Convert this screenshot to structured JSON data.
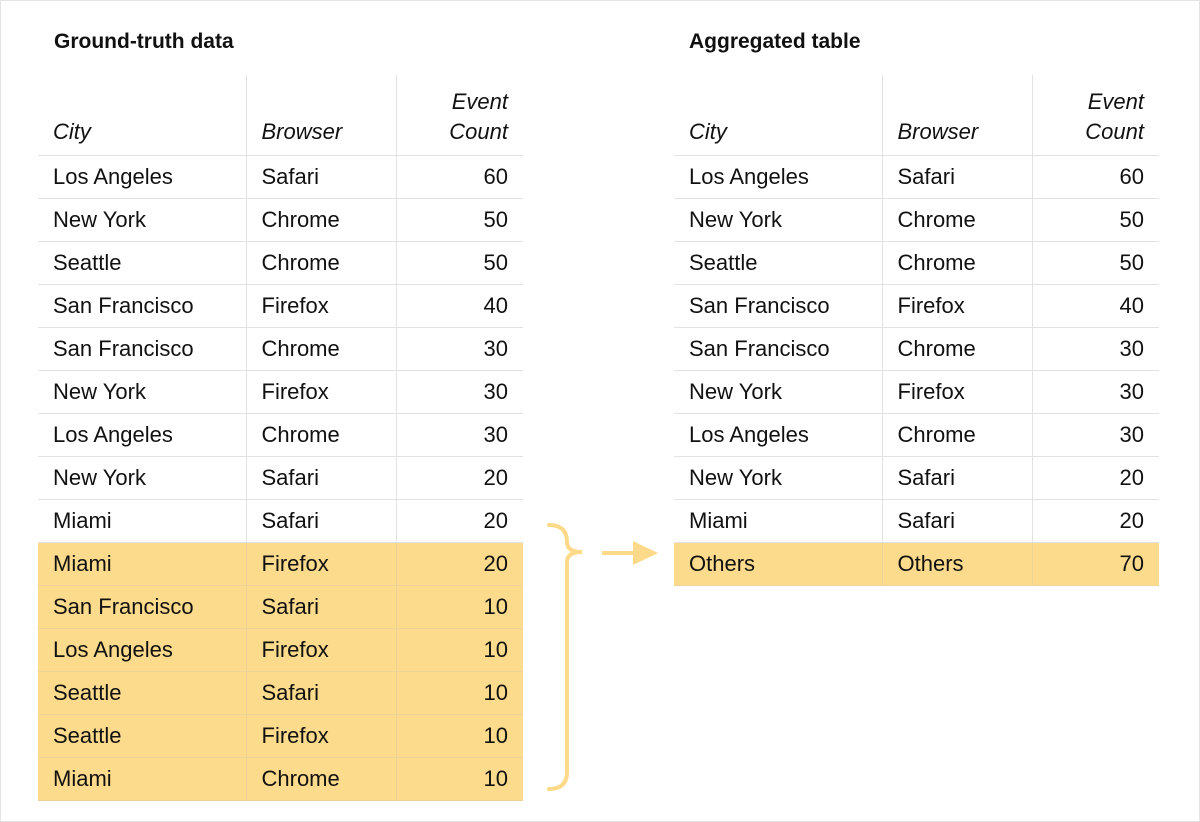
{
  "left": {
    "title": "Ground-truth data",
    "headers": {
      "city": "City",
      "browser": "Browser",
      "count_line1": "Event",
      "count_line2": "Count"
    },
    "rows": [
      {
        "city": "Los Angeles",
        "browser": "Safari",
        "count": "60",
        "highlighted": false
      },
      {
        "city": "New York",
        "browser": "Chrome",
        "count": "50",
        "highlighted": false
      },
      {
        "city": "Seattle",
        "browser": "Chrome",
        "count": "50",
        "highlighted": false
      },
      {
        "city": "San Francisco",
        "browser": "Firefox",
        "count": "40",
        "highlighted": false
      },
      {
        "city": "San Francisco",
        "browser": "Chrome",
        "count": "30",
        "highlighted": false
      },
      {
        "city": "New York",
        "browser": "Firefox",
        "count": "30",
        "highlighted": false
      },
      {
        "city": "Los Angeles",
        "browser": "Chrome",
        "count": "30",
        "highlighted": false
      },
      {
        "city": "New York",
        "browser": "Safari",
        "count": "20",
        "highlighted": false
      },
      {
        "city": "Miami",
        "browser": "Safari",
        "count": "20",
        "highlighted": false
      },
      {
        "city": "Miami",
        "browser": "Firefox",
        "count": "20",
        "highlighted": true
      },
      {
        "city": "San Francisco",
        "browser": "Safari",
        "count": "10",
        "highlighted": true
      },
      {
        "city": "Los Angeles",
        "browser": "Firefox",
        "count": "10",
        "highlighted": true
      },
      {
        "city": "Seattle",
        "browser": "Safari",
        "count": "10",
        "highlighted": true
      },
      {
        "city": "Seattle",
        "browser": "Firefox",
        "count": "10",
        "highlighted": true
      },
      {
        "city": "Miami",
        "browser": "Chrome",
        "count": "10",
        "highlighted": true
      }
    ]
  },
  "right": {
    "title": "Aggregated table",
    "headers": {
      "city": "City",
      "browser": "Browser",
      "count_line1": "Event",
      "count_line2": "Count"
    },
    "rows": [
      {
        "city": "Los Angeles",
        "browser": "Safari",
        "count": "60",
        "highlighted": false
      },
      {
        "city": "New York",
        "browser": "Chrome",
        "count": "50",
        "highlighted": false
      },
      {
        "city": "Seattle",
        "browser": "Chrome",
        "count": "50",
        "highlighted": false
      },
      {
        "city": "San Francisco",
        "browser": "Firefox",
        "count": "40",
        "highlighted": false
      },
      {
        "city": "San Francisco",
        "browser": "Chrome",
        "count": "30",
        "highlighted": false
      },
      {
        "city": "New York",
        "browser": "Firefox",
        "count": "30",
        "highlighted": false
      },
      {
        "city": "Los Angeles",
        "browser": "Chrome",
        "count": "30",
        "highlighted": false
      },
      {
        "city": "New York",
        "browser": "Safari",
        "count": "20",
        "highlighted": false
      },
      {
        "city": "Miami",
        "browser": "Safari",
        "count": "20",
        "highlighted": false
      },
      {
        "city": "Others",
        "browser": "Others",
        "count": "70",
        "highlighted": true
      }
    ]
  },
  "colors": {
    "highlight": "#fddb8c",
    "connector": "#fdd98a"
  }
}
